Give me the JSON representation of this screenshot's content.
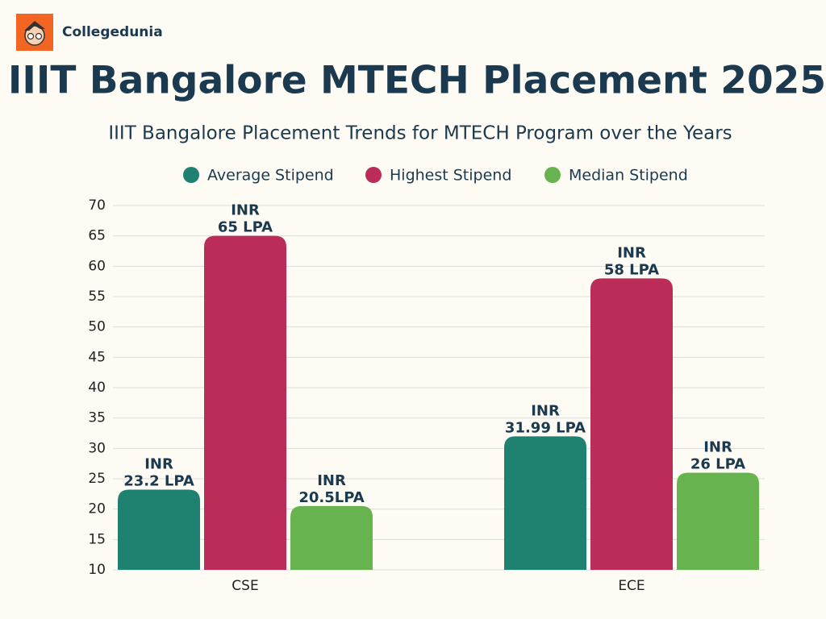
{
  "brand": "Collegedunia",
  "chart_data": {
    "type": "bar",
    "title": "IIIT Bangalore MTECH Placement 2025",
    "subtitle": "IIIT Bangalore  Placement  Trends for MTECH  Program over the Years",
    "categories": [
      "CSE",
      "ECE"
    ],
    "series": [
      {
        "name": "Average Stipend",
        "color": "#1f8270",
        "values": [
          23.2,
          31.99
        ],
        "value_labels": [
          "INR\n23.2 LPA",
          "INR\n31.99 LPA"
        ]
      },
      {
        "name": "Highest Stipend",
        "color": "#bb2d58",
        "values": [
          65,
          58
        ],
        "value_labels": [
          "INR\n65 LPA",
          "INR\n58 LPA"
        ]
      },
      {
        "name": "Median Stipend",
        "color": "#67b34f",
        "values": [
          20.5,
          26
        ],
        "value_labels": [
          "INR\n20.5LPA",
          "INR\n26 LPA"
        ]
      }
    ],
    "ylim": [
      10,
      70
    ],
    "yticks": [
      10,
      15,
      20,
      25,
      30,
      35,
      40,
      45,
      50,
      55,
      60,
      65,
      70
    ],
    "grid": true
  }
}
